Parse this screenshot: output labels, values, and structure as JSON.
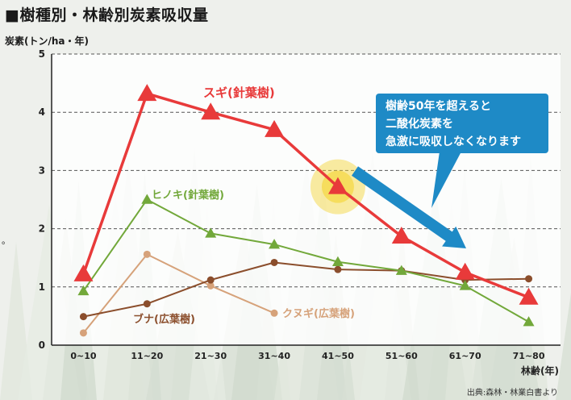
{
  "header": {
    "title": "■樹種別・林齢別炭素吸収量",
    "source": "出典:森林・林業白書より"
  },
  "side_mark": "。",
  "callout": {
    "lines": [
      "樹齢50年を超えると",
      "二酸化炭素を",
      "急激に吸収しなくなります"
    ],
    "color": "#1e8ac6"
  },
  "chart_data": {
    "type": "line",
    "ylabel": "炭素(トン/ha・年)",
    "xlabel": "林齢(年)",
    "ylim": [
      0,
      5
    ],
    "yticks": [
      0,
      1,
      2,
      3,
      4,
      5
    ],
    "grid": true,
    "categories": [
      "0~10",
      "11~20",
      "21~30",
      "31~40",
      "41~50",
      "51~60",
      "61~70",
      "71~80"
    ],
    "series": [
      {
        "name": "スギ(針葉樹)",
        "color": "#e83a3a",
        "marker": "triangle",
        "values": [
          1.22,
          4.32,
          4.0,
          3.7,
          2.72,
          1.87,
          1.25,
          0.82
        ]
      },
      {
        "name": "ヒノキ(針葉樹)",
        "color": "#72a83a",
        "marker": "triangle-small",
        "values": [
          0.93,
          2.5,
          1.92,
          1.73,
          1.43,
          1.28,
          1.02,
          0.4
        ]
      },
      {
        "name": "ブナ(広葉樹)",
        "color": "#8b4e2c",
        "marker": "circle",
        "values": [
          0.49,
          0.71,
          1.12,
          1.42,
          1.3,
          1.28,
          1.12,
          1.14
        ]
      },
      {
        "name": "クヌギ(広葉樹)",
        "color": "#d6a27a",
        "marker": "circle",
        "values": [
          0.21,
          1.56,
          1.02,
          0.55,
          null,
          null,
          null,
          null
        ]
      }
    ],
    "highlight": {
      "series": "スギ(針葉樹)",
      "category": "41~50",
      "color": "#f5d330"
    }
  }
}
